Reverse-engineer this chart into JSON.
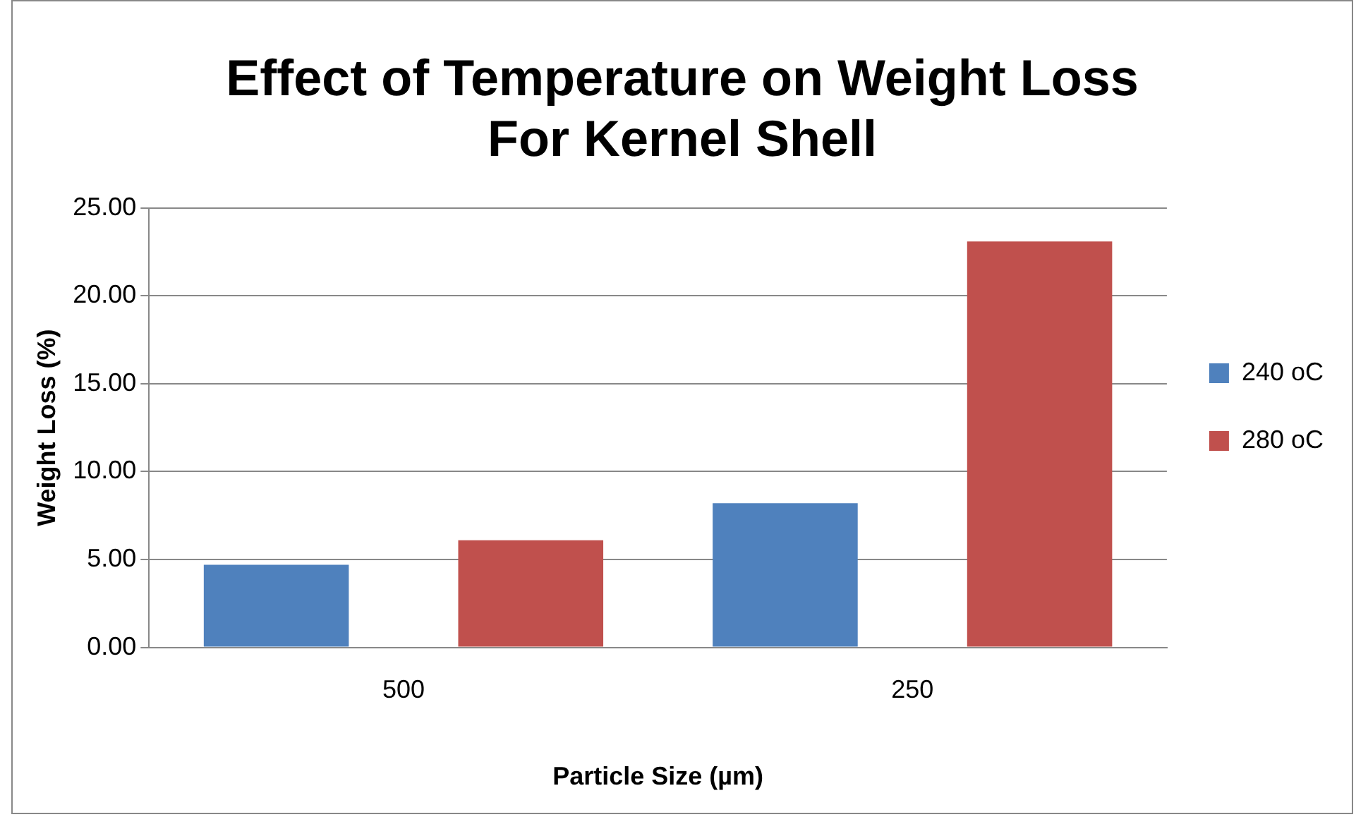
{
  "chart_data": {
    "type": "bar",
    "title": "Effect of Temperature on Weight Loss For Kernel Shell",
    "xlabel": "Particle Size (µm)",
    "ylabel": "Weight Loss (%)",
    "categories": [
      "500",
      "250"
    ],
    "series": [
      {
        "name": "240 oC",
        "color": "#4f81bd",
        "values": [
          4.7,
          8.2
        ]
      },
      {
        "name": "280 oC",
        "color": "#c0504d",
        "values": [
          6.1,
          23.1
        ]
      }
    ],
    "ylim": [
      0,
      25
    ],
    "yticks": [
      {
        "value": 0,
        "label": "0.00"
      },
      {
        "value": 5,
        "label": "5.00"
      },
      {
        "value": 10,
        "label": "10.00"
      },
      {
        "value": 15,
        "label": "15.00"
      },
      {
        "value": 20,
        "label": "20.00"
      },
      {
        "value": 25,
        "label": "25.00"
      }
    ],
    "grid": "y",
    "legend": "right"
  }
}
